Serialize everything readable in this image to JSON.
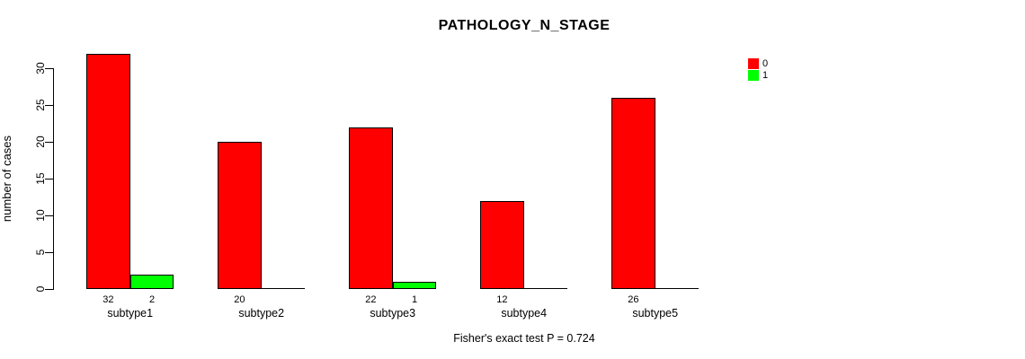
{
  "figure": {
    "background": "#ffffff",
    "text_color": "#000000"
  },
  "chart_data": {
    "type": "bar",
    "title": "PATHOLOGY_N_STAGE",
    "xlabel": "",
    "ylabel": "number of cases",
    "categories": [
      "subtype1",
      "subtype2",
      "subtype3",
      "subtype4",
      "subtype5"
    ],
    "series": [
      {
        "name": "0",
        "color": "#ff0000",
        "values": [
          32,
          20,
          22,
          12,
          26
        ]
      },
      {
        "name": "1",
        "color": "#00ff00",
        "values": [
          2,
          0,
          1,
          0,
          0
        ]
      }
    ],
    "bar_value_labels_rule": "shown under each bar only when value > 0",
    "visible_bar_value_labels": [
      "32",
      "2",
      "20",
      "22",
      "1",
      "12",
      "26"
    ],
    "ylim": [
      0,
      30
    ],
    "yticks": [
      0,
      5,
      10,
      15,
      20,
      25,
      30
    ],
    "grid": false,
    "legend": {
      "position": "top-right",
      "entries": [
        "0",
        "1"
      ]
    },
    "annotation": "Fisher's exact test P = 0.724"
  }
}
